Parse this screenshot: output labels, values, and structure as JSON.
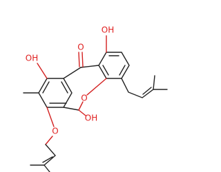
{
  "nodes": [
    {
      "label": "OH"
    },
    {
      "label": "O"
    },
    {
      "label": "OH"
    },
    {
      "label": "O"
    },
    {
      "label": "OH"
    },
    {
      "label": "O"
    }
  ]
}
